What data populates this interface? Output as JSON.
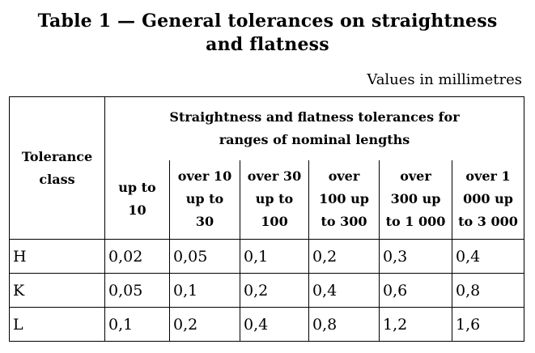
{
  "title": {
    "line1": "Table 1 — General tolerances on straightness",
    "line2": "and flatness"
  },
  "units_note": "Values in millimetres",
  "table": {
    "class_header": [
      "Tolerance",
      "class"
    ],
    "group_header": [
      "Straightness and flatness tolerances for",
      "ranges of nominal lengths"
    ],
    "ranges": [
      [
        "up to",
        "10"
      ],
      [
        "over 10",
        "up to",
        "30"
      ],
      [
        "over 30",
        "up to",
        "100"
      ],
      [
        "over",
        "100 up",
        "to 300"
      ],
      [
        "over",
        "300 up",
        "to 1 000"
      ],
      [
        "over 1",
        "000 up",
        "to 3 000"
      ]
    ],
    "rows": [
      {
        "class": "H",
        "values": [
          "0,02",
          "0,05",
          "0,1",
          "0,2",
          "0,3",
          "0,4"
        ]
      },
      {
        "class": "K",
        "values": [
          "0,05",
          "0,1",
          "0,2",
          "0,4",
          "0,6",
          "0,8"
        ]
      },
      {
        "class": "L",
        "values": [
          "0,1",
          "0,2",
          "0,4",
          "0,8",
          "1,2",
          "1,6"
        ]
      }
    ]
  }
}
